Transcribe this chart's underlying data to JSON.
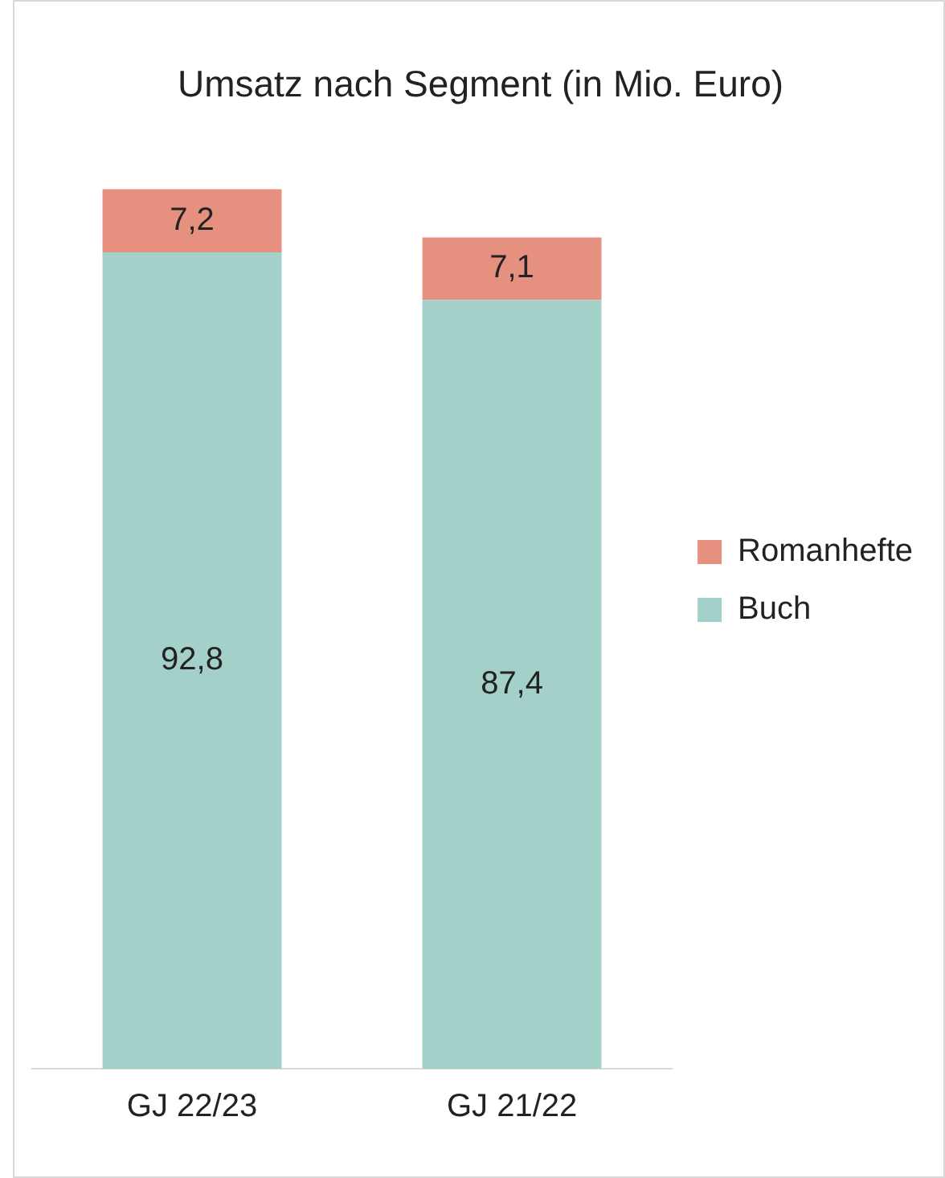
{
  "chart_data": {
    "type": "bar",
    "title": "Umsatz nach Segment (in Mio. Euro)",
    "categories": [
      "GJ 22/23",
      "GJ 21/22"
    ],
    "stacked": true,
    "legend": "right",
    "grid": false,
    "series": [
      {
        "name": "Buch",
        "color": "#a3d0c9",
        "values": [
          92.8,
          87.4
        ],
        "value_labels": [
          "92,8",
          "87,4"
        ]
      },
      {
        "name": "Romanhefte",
        "color": "#e6907f",
        "values": [
          7.2,
          7.1
        ],
        "value_labels": [
          "7,2",
          "7,1"
        ]
      }
    ]
  }
}
